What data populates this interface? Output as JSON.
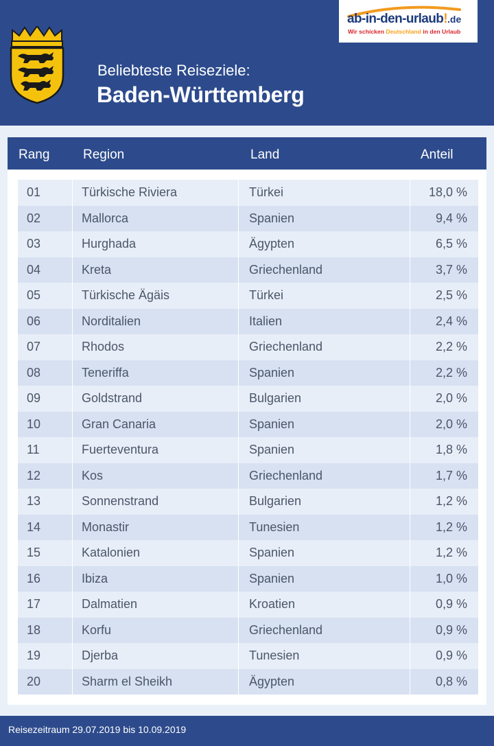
{
  "header": {
    "subtitle": "Beliebteste Reiseziele:",
    "title": "Baden-Württemberg",
    "crest_icon": "baden-wuerttemberg-coat-of-arms-icon",
    "brand_color": "#2d4b8c"
  },
  "logo": {
    "main": "ab-in-den-urlaub",
    "bang": "!",
    "tld": ".de",
    "sub_red_1": "Wir schicken ",
    "sub_yellow": "Deutschland",
    "sub_red_2": " in den Urlaub"
  },
  "table": {
    "headers": {
      "rang": "Rang",
      "region": "Region",
      "land": "Land",
      "anteil": "Anteil"
    },
    "rows": [
      {
        "rang": "01",
        "region": "Türkische Riviera",
        "land": "Türkei",
        "anteil": "18,0 %"
      },
      {
        "rang": "02",
        "region": "Mallorca",
        "land": "Spanien",
        "anteil": "9,4 %"
      },
      {
        "rang": "03",
        "region": "Hurghada",
        "land": "Ägypten",
        "anteil": "6,5 %"
      },
      {
        "rang": "04",
        "region": "Kreta",
        "land": "Griechenland",
        "anteil": "3,7 %"
      },
      {
        "rang": "05",
        "region": "Türkische Ägäis",
        "land": "Türkei",
        "anteil": "2,5 %"
      },
      {
        "rang": "06",
        "region": "Norditalien",
        "land": "Italien",
        "anteil": "2,4 %"
      },
      {
        "rang": "07",
        "region": "Rhodos",
        "land": "Griechenland",
        "anteil": "2,2 %"
      },
      {
        "rang": "08",
        "region": "Teneriffa",
        "land": "Spanien",
        "anteil": "2,2 %"
      },
      {
        "rang": "09",
        "region": "Goldstrand",
        "land": "Bulgarien",
        "anteil": "2,0 %"
      },
      {
        "rang": "10",
        "region": "Gran Canaria",
        "land": "Spanien",
        "anteil": "2,0 %"
      },
      {
        "rang": "11",
        "region": "Fuerteventura",
        "land": "Spanien",
        "anteil": "1,8 %"
      },
      {
        "rang": "12",
        "region": "Kos",
        "land": "Griechenland",
        "anteil": "1,7 %"
      },
      {
        "rang": "13",
        "region": "Sonnenstrand",
        "land": "Bulgarien",
        "anteil": "1,2 %"
      },
      {
        "rang": "14",
        "region": "Monastir",
        "land": "Tunesien",
        "anteil": "1,2 %"
      },
      {
        "rang": "15",
        "region": "Katalonien",
        "land": "Spanien",
        "anteil": "1,2 %"
      },
      {
        "rang": "16",
        "region": "Ibiza",
        "land": "Spanien",
        "anteil": "1,0 %"
      },
      {
        "rang": "17",
        "region": "Dalmatien",
        "land": "Kroatien",
        "anteil": "0,9 %"
      },
      {
        "rang": "18",
        "region": "Korfu",
        "land": "Griechenland",
        "anteil": "0,9 %"
      },
      {
        "rang": "19",
        "region": "Djerba",
        "land": "Tunesien",
        "anteil": "0,9 %"
      },
      {
        "rang": "20",
        "region": "Sharm el Sheikh",
        "land": "Ägypten",
        "anteil": "0,8 %"
      }
    ]
  },
  "footer": {
    "text": "Reisezeitraum 29.07.2019 bis 10.09.2019"
  }
}
